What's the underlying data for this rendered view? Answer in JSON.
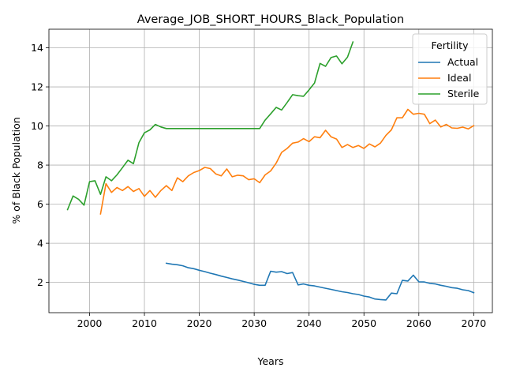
{
  "chart_data": {
    "type": "line",
    "title": "Average_JOB_SHORT_HOURS_Black_Population",
    "xlabel": "Years",
    "ylabel": "% of Black Population",
    "xlim": [
      1992.6,
      2073.4
    ],
    "ylim": [
      0.45,
      14.95
    ],
    "xticks": [
      2000,
      2010,
      2020,
      2030,
      2040,
      2050,
      2060,
      2070
    ],
    "yticks": [
      2,
      4,
      6,
      8,
      10,
      12,
      14
    ],
    "grid": true,
    "legend": {
      "title": "Fertility",
      "position": "top-right"
    },
    "series": [
      {
        "name": "Actual",
        "color": "#1f77b4",
        "x": [
          2014,
          2015,
          2016,
          2017,
          2018,
          2019,
          2020,
          2021,
          2022,
          2023,
          2024,
          2025,
          2026,
          2027,
          2028,
          2029,
          2030,
          2031,
          2032,
          2033,
          2034,
          2035,
          2036,
          2037,
          2038,
          2039,
          2040,
          2041,
          2042,
          2043,
          2044,
          2045,
          2046,
          2047,
          2048,
          2049,
          2050,
          2051,
          2052,
          2053,
          2054,
          2055,
          2056,
          2057,
          2058,
          2059,
          2060,
          2061,
          2062,
          2063,
          2064,
          2065,
          2066,
          2067,
          2068,
          2069,
          2070
        ],
        "y": [
          2.98,
          2.93,
          2.9,
          2.85,
          2.75,
          2.7,
          2.62,
          2.55,
          2.47,
          2.4,
          2.32,
          2.25,
          2.18,
          2.12,
          2.05,
          1.98,
          1.9,
          1.85,
          1.85,
          2.57,
          2.52,
          2.55,
          2.45,
          2.5,
          1.87,
          1.92,
          1.85,
          1.82,
          1.76,
          1.7,
          1.64,
          1.58,
          1.52,
          1.48,
          1.42,
          1.38,
          1.3,
          1.25,
          1.15,
          1.12,
          1.1,
          1.45,
          1.42,
          2.1,
          2.07,
          2.37,
          2.03,
          2.02,
          1.95,
          1.92,
          1.85,
          1.8,
          1.73,
          1.7,
          1.62,
          1.58,
          1.47
        ]
      },
      {
        "name": "Ideal",
        "color": "#ff7f0e",
        "x": [
          2002,
          2003,
          2004,
          2005,
          2006,
          2007,
          2008,
          2009,
          2010,
          2011,
          2012,
          2013,
          2014,
          2015,
          2016,
          2017,
          2018,
          2019,
          2020,
          2021,
          2022,
          2023,
          2024,
          2025,
          2026,
          2027,
          2028,
          2029,
          2030,
          2031,
          2032,
          2033,
          2034,
          2035,
          2036,
          2037,
          2038,
          2039,
          2040,
          2041,
          2042,
          2043,
          2044,
          2045,
          2046,
          2047,
          2048,
          2049,
          2050,
          2051,
          2052,
          2053,
          2054,
          2055,
          2056,
          2057,
          2058,
          2059,
          2060,
          2061,
          2062,
          2063,
          2064,
          2065,
          2066,
          2067,
          2068,
          2069,
          2070
        ],
        "y": [
          5.5,
          7.05,
          6.6,
          6.85,
          6.7,
          6.9,
          6.65,
          6.8,
          6.4,
          6.7,
          6.35,
          6.7,
          6.95,
          6.7,
          7.35,
          7.15,
          7.45,
          7.62,
          7.72,
          7.88,
          7.82,
          7.55,
          7.45,
          7.8,
          7.4,
          7.48,
          7.45,
          7.25,
          7.3,
          7.1,
          7.5,
          7.7,
          8.1,
          8.65,
          8.85,
          9.12,
          9.18,
          9.35,
          9.2,
          9.45,
          9.4,
          9.78,
          9.45,
          9.33,
          8.9,
          9.05,
          8.9,
          9.0,
          8.85,
          9.08,
          8.93,
          9.12,
          9.52,
          9.8,
          10.42,
          10.42,
          10.85,
          10.6,
          10.65,
          10.6,
          10.12,
          10.3,
          9.95,
          10.08,
          9.9,
          9.88,
          9.94,
          9.85,
          10.02
        ]
      },
      {
        "name": "Sterile",
        "color": "#2ca02c",
        "x": [
          1996,
          1997,
          1998,
          1999,
          2000,
          2001,
          2002,
          2003,
          2004,
          2005,
          2006,
          2007,
          2008,
          2009,
          2010,
          2011,
          2012,
          2013,
          2014,
          2015,
          2016,
          2017,
          2018,
          2019,
          2020,
          2021,
          2022,
          2023,
          2024,
          2025,
          2026,
          2027,
          2028,
          2029,
          2030,
          2031,
          2032,
          2033,
          2034,
          2035,
          2036,
          2037,
          2038,
          2039,
          2040,
          2041,
          2042,
          2043,
          2044,
          2045,
          2046,
          2047,
          2048
        ],
        "y": [
          5.72,
          6.42,
          6.25,
          5.95,
          7.15,
          7.2,
          6.5,
          7.4,
          7.2,
          7.5,
          7.87,
          8.25,
          8.07,
          9.15,
          9.65,
          9.8,
          10.08,
          9.95,
          9.87,
          9.87,
          9.87,
          9.87,
          9.87,
          9.87,
          9.87,
          9.87,
          9.87,
          9.87,
          9.87,
          9.87,
          9.87,
          9.87,
          9.87,
          9.87,
          9.87,
          9.87,
          10.3,
          10.62,
          10.95,
          10.82,
          11.2,
          11.6,
          11.55,
          11.52,
          11.85,
          12.2,
          13.2,
          13.05,
          13.5,
          13.58,
          13.18,
          13.52,
          14.3
        ]
      }
    ]
  }
}
